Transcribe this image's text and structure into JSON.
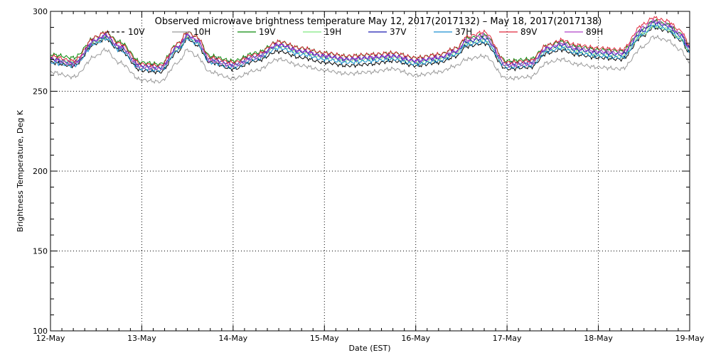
{
  "chart_data": {
    "type": "line",
    "title": "Observed microwave brightness temperature May 12, 2017(2017132) – May 18, 2017(2017138)",
    "xlabel": "Date (EST)",
    "ylabel": "Brightness Temperature, Deg K",
    "xlim": [
      0,
      7
    ],
    "ylim": [
      100,
      300
    ],
    "y_ticks": [
      100,
      150,
      200,
      250,
      300
    ],
    "x_tick_labels": [
      "12-May",
      "13-May",
      "14-May",
      "15-May",
      "16-May",
      "17-May",
      "18-May",
      "19-May"
    ],
    "grid": true,
    "legend_position": "top",
    "x_units": "days since 12-May 00:00",
    "x": [
      0,
      0.25,
      0.5,
      0.6,
      0.75,
      1,
      1.2,
      1.4,
      1.5,
      1.6,
      1.75,
      2,
      2.25,
      2.5,
      2.75,
      3,
      3.25,
      3.5,
      3.75,
      4,
      4.25,
      4.45,
      4.55,
      4.75,
      5,
      5.25,
      5.45,
      5.6,
      5.75,
      6,
      6.25,
      6.5,
      6.6,
      6.75,
      6.9,
      7
    ],
    "series": [
      {
        "name": "10V",
        "color": "#000000",
        "dash": "4 3",
        "values": [
          268,
          266,
          280,
          283,
          276,
          263,
          262,
          275,
          283,
          279,
          268,
          264,
          269,
          275,
          271,
          268,
          266,
          267,
          269,
          266,
          268,
          272,
          278,
          280,
          264,
          265,
          274,
          276,
          273,
          271,
          270,
          285,
          290,
          288,
          282,
          274
        ]
      },
      {
        "name": "10H",
        "color": "#9a9a9a",
        "dash": "",
        "values": [
          262,
          259,
          272,
          276,
          268,
          257,
          256,
          268,
          276,
          272,
          262,
          258,
          263,
          270,
          266,
          263,
          261,
          262,
          264,
          260,
          262,
          266,
          270,
          272,
          258,
          259,
          268,
          270,
          267,
          265,
          264,
          278,
          284,
          282,
          276,
          268
        ]
      },
      {
        "name": "19V",
        "color": "#0a8a0a",
        "dash": "",
        "values": [
          273,
          271,
          284,
          287,
          281,
          268,
          267,
          280,
          287,
          284,
          272,
          269,
          274,
          281,
          277,
          274,
          272,
          273,
          274,
          271,
          273,
          277,
          283,
          285,
          269,
          270,
          279,
          281,
          278,
          276,
          275,
          289,
          294,
          292,
          286,
          278
        ]
      },
      {
        "name": "19H",
        "color": "#7fe67f",
        "dash": "",
        "values": [
          270,
          268,
          281,
          284,
          278,
          265,
          264,
          277,
          284,
          281,
          269,
          266,
          271,
          278,
          274,
          271,
          269,
          270,
          271,
          268,
          270,
          274,
          280,
          282,
          266,
          267,
          276,
          278,
          275,
          273,
          272,
          286,
          291,
          289,
          283,
          275
        ]
      },
      {
        "name": "37V",
        "color": "#1a1ab0",
        "dash": "",
        "values": [
          270,
          268,
          282,
          285,
          278,
          266,
          265,
          278,
          285,
          282,
          270,
          267,
          272,
          279,
          275,
          272,
          270,
          271,
          272,
          269,
          271,
          275,
          281,
          283,
          267,
          268,
          277,
          279,
          276,
          274,
          273,
          288,
          293,
          291,
          285,
          277
        ]
      },
      {
        "name": "37H",
        "color": "#1a8fd0",
        "dash": "",
        "values": [
          268,
          266,
          280,
          283,
          276,
          264,
          263,
          276,
          283,
          280,
          268,
          265,
          270,
          277,
          273,
          270,
          268,
          269,
          270,
          267,
          269,
          273,
          279,
          281,
          265,
          266,
          275,
          277,
          274,
          272,
          271,
          286,
          291,
          289,
          283,
          275
        ]
      },
      {
        "name": "89V",
        "color": "#e0283c",
        "dash": "",
        "values": [
          272,
          269,
          284,
          287,
          280,
          267,
          266,
          280,
          287,
          284,
          271,
          268,
          273,
          281,
          277,
          274,
          272,
          273,
          274,
          271,
          273,
          277,
          284,
          287,
          268,
          269,
          279,
          282,
          279,
          277,
          276,
          292,
          296,
          294,
          288,
          279
        ]
      },
      {
        "name": "89H",
        "color": "#b040c8",
        "dash": "",
        "values": [
          270,
          267,
          282,
          285,
          278,
          265,
          264,
          278,
          285,
          282,
          269,
          266,
          271,
          279,
          275,
          272,
          270,
          271,
          272,
          269,
          271,
          275,
          282,
          285,
          266,
          267,
          277,
          280,
          277,
          275,
          274,
          290,
          294,
          292,
          286,
          277
        ]
      }
    ]
  }
}
